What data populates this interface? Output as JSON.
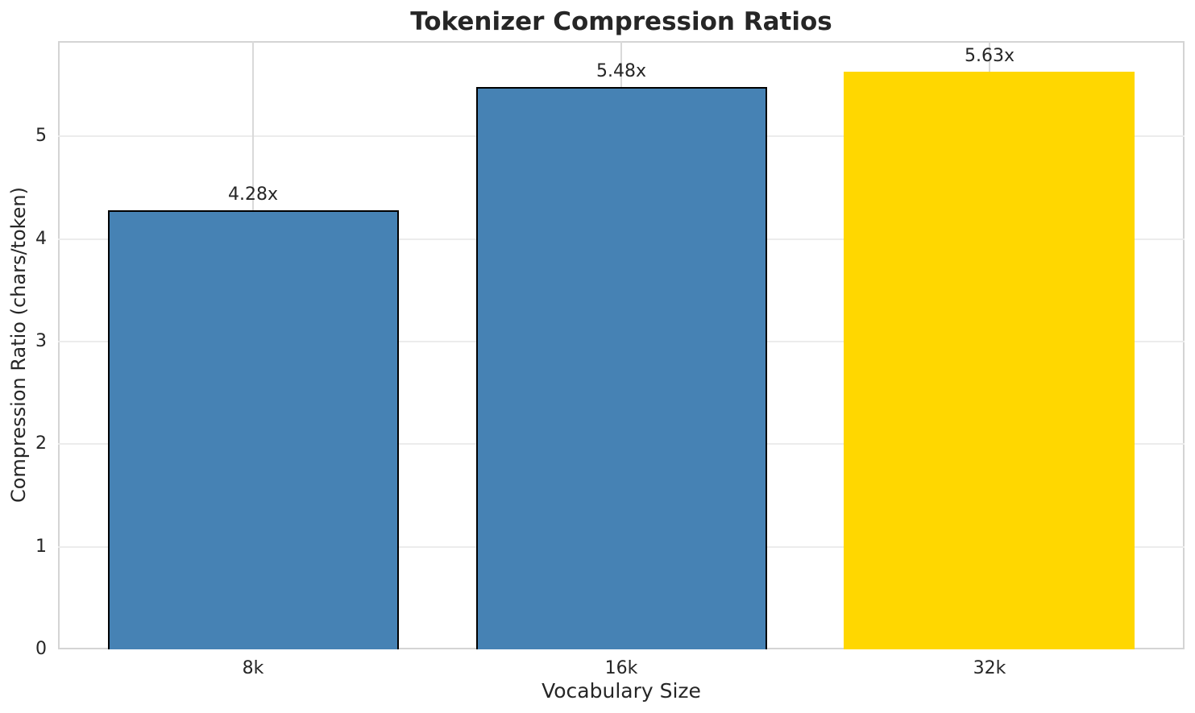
{
  "chart_data": {
    "type": "bar",
    "title": "Tokenizer Compression Ratios",
    "xlabel": "Vocabulary Size",
    "ylabel": "Compression Ratio (chars/token)",
    "categories": [
      "8k",
      "16k",
      "32k"
    ],
    "values": [
      4.28,
      5.48,
      5.63
    ],
    "bar_labels": [
      "4.28x",
      "5.48x",
      "5.63x"
    ],
    "bar_colors": [
      "#4682b4",
      "#4682b4",
      "#ffd700"
    ],
    "bar_edge_colors": [
      "#000000",
      "#000000",
      "none"
    ],
    "highlighted_category": "32k",
    "yticks": [
      0,
      1,
      2,
      3,
      4,
      5
    ],
    "ylim": [
      0,
      5.93
    ],
    "xlim": [
      -0.53,
      2.53
    ],
    "bar_width_fraction": 0.79,
    "grid": true,
    "legend_position": "none",
    "colors": {
      "background": "#ffffff",
      "text": "#262626",
      "spine": "#d4d4d4",
      "grid_horizontal": "#ececec",
      "grid_vertical": "#d9d9d9",
      "bar_blue": "#4682b4",
      "bar_gold": "#ffd700",
      "bar_edge": "#000000"
    }
  }
}
